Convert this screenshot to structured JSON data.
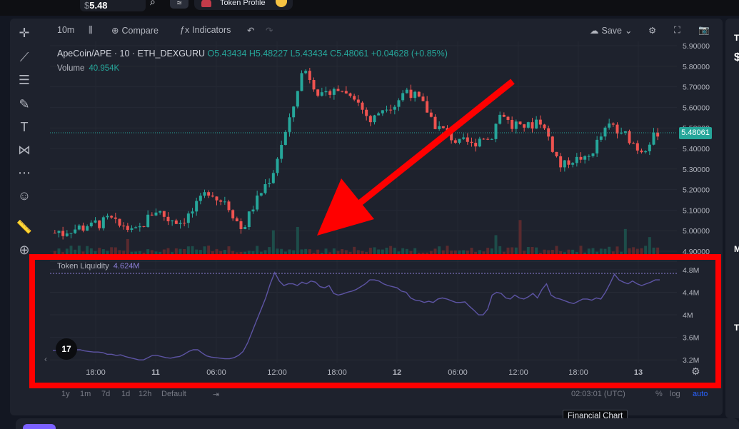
{
  "topbar": {
    "price_currency": "$",
    "price_value": "5.48",
    "chip_label": "≈",
    "profile_label": "Token Profile"
  },
  "toolbar": {
    "interval": "10m",
    "compare": "Compare",
    "indicators": "Indicators",
    "save": "Save"
  },
  "legend": {
    "symbol": "ApeCoin/APE · 10 · ETH_DEXGURU",
    "ohlc": "O5.43434 H5.48227 L5.43434 C5.48061 +0.04628 (+0.85%)",
    "volume_label": "Volume",
    "volume_value": "40.954K",
    "liquidity_label": "Token Liquidity",
    "liquidity_value": "4.624M"
  },
  "price_axis": [
    "5.90000",
    "5.80000",
    "5.70000",
    "5.60000",
    "5.50000",
    "5.40000",
    "5.30000",
    "5.20000",
    "5.10000",
    "5.00000",
    "4.90000"
  ],
  "current_price": "5.48061",
  "liquidity_axis": [
    "4.8M",
    "4.4M",
    "4M",
    "3.6M",
    "3.2M"
  ],
  "time_axis": [
    "18:00",
    "11",
    "06:00",
    "12:00",
    "18:00",
    "12",
    "06:00",
    "12:00",
    "18:00",
    "13"
  ],
  "bottom_bar": {
    "ranges": [
      "1y",
      "1m",
      "7d",
      "1d",
      "12h",
      "Default"
    ],
    "clock": "02:03:01 (UTC)",
    "percent": "%",
    "log": "log",
    "auto": "auto"
  },
  "tooltip": "Financial Chart",
  "tv_logo": "17",
  "right_panel": [
    "T",
    "$",
    "M",
    "T"
  ],
  "colors": {
    "up": "#26a69a",
    "down": "#ef5350",
    "liquidity": "#5d54a4",
    "annotation": "#ff0000",
    "background": "#1e222d"
  },
  "chart_data": {
    "type": "candlestick",
    "close_series": [
      4.99,
      5.0,
      4.98,
      5.01,
      5.0,
      5.02,
      5.01,
      5.03,
      5.02,
      5.04,
      5.03,
      5.05,
      5.06,
      5.04,
      5.02,
      5.03,
      5.01,
      4.99,
      5.0,
      5.02,
      5.05,
      5.08,
      5.1,
      5.09,
      5.07,
      5.05,
      5.06,
      5.04,
      5.05,
      5.07,
      5.09,
      5.12,
      5.15,
      5.18,
      5.2,
      5.17,
      5.14,
      5.16,
      5.12,
      5.08,
      5.04,
      5.0,
      5.05,
      5.1,
      5.14,
      5.18,
      5.22,
      5.25,
      5.3,
      5.38,
      5.45,
      5.5,
      5.58,
      5.68,
      5.76,
      5.78,
      5.74,
      5.7,
      5.66,
      5.64,
      5.68,
      5.7,
      5.67,
      5.69,
      5.66,
      5.68,
      5.64,
      5.6,
      5.57,
      5.53,
      5.55,
      5.58,
      5.6,
      5.62,
      5.6,
      5.63,
      5.66,
      5.69,
      5.67,
      5.65,
      5.63,
      5.6,
      5.57,
      5.52,
      5.5,
      5.49,
      5.47,
      5.45,
      5.43,
      5.42,
      5.44,
      5.41,
      5.43,
      5.45,
      5.46,
      5.44,
      5.48,
      5.55,
      5.58,
      5.54,
      5.5,
      5.52,
      5.49,
      5.52,
      5.5,
      5.53,
      5.55,
      5.5,
      5.46,
      5.4,
      5.35,
      5.3,
      5.33,
      5.35,
      5.34,
      5.36,
      5.34,
      5.36,
      5.4,
      5.44,
      5.47,
      5.5,
      5.52,
      5.48,
      5.46,
      5.47,
      5.44,
      5.42,
      5.39,
      5.4,
      5.43,
      5.45,
      5.48
    ],
    "liquidity_series": [
      3.37,
      3.37,
      3.38,
      3.36,
      3.35,
      3.38,
      3.38,
      3.36,
      3.35,
      3.34,
      3.34,
      3.33,
      3.3,
      3.3,
      3.28,
      3.29,
      3.26,
      3.24,
      3.22,
      3.2,
      3.2,
      3.24,
      3.28,
      3.28,
      3.26,
      3.24,
      3.23,
      3.25,
      3.26,
      3.3,
      3.35,
      3.38,
      3.38,
      3.32,
      3.27,
      3.25,
      3.24,
      3.23,
      3.22,
      3.22,
      3.24,
      3.28,
      3.35,
      3.5,
      3.7,
      3.9,
      4.1,
      4.3,
      4.55,
      4.75,
      4.6,
      4.52,
      4.55,
      4.55,
      4.52,
      4.58,
      4.55,
      4.6,
      4.58,
      4.5,
      4.48,
      4.52,
      4.38,
      4.35,
      4.37,
      4.4,
      4.42,
      4.45,
      4.5,
      4.55,
      4.62,
      4.62,
      4.6,
      4.55,
      4.52,
      4.5,
      4.48,
      4.42,
      4.4,
      4.3,
      4.26,
      4.25,
      4.22,
      4.24,
      4.22,
      4.28,
      4.3,
      4.28,
      4.25,
      4.22,
      4.22,
      4.23,
      4.15,
      4.08,
      4.0,
      4.0,
      4.1,
      4.35,
      4.4,
      4.38,
      4.3,
      4.28,
      4.35,
      4.3,
      4.28,
      4.32,
      4.38,
      4.3,
      4.45,
      4.55,
      4.35,
      4.3,
      4.28,
      4.25,
      4.22,
      4.2,
      4.24,
      4.28,
      4.28,
      4.26,
      4.3,
      4.28,
      4.4,
      4.55,
      4.72,
      4.62,
      4.58,
      4.55,
      4.6,
      4.55,
      4.52,
      4.55,
      4.58,
      4.62,
      4.62
    ],
    "price_range": [
      4.9,
      5.9
    ],
    "liquidity_range": [
      3.0,
      4.9
    ]
  }
}
